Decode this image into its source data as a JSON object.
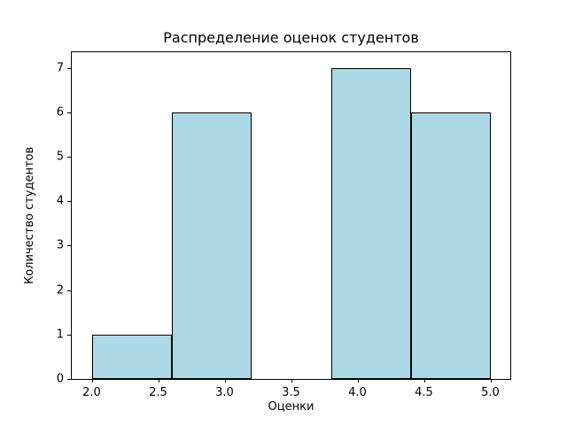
{
  "chart_data": {
    "type": "bar",
    "subtype": "histogram",
    "title": "Распределение оценок студентов",
    "xlabel": "Оценки",
    "ylabel": "Количество студентов",
    "bin_edges": [
      2.0,
      2.6,
      3.2,
      3.8,
      4.4,
      5.0
    ],
    "values": [
      1,
      6,
      0,
      7,
      6
    ],
    "xlim": [
      1.85,
      5.15
    ],
    "ylim": [
      0,
      7.35
    ],
    "xticks": [
      2.0,
      2.5,
      3.0,
      3.5,
      4.0,
      4.5,
      5.0
    ],
    "xtick_labels": [
      "2.0",
      "2.5",
      "3.0",
      "3.5",
      "4.0",
      "4.5",
      "5.0"
    ],
    "yticks": [
      0,
      1,
      2,
      3,
      4,
      5,
      6,
      7
    ],
    "ytick_labels": [
      "0",
      "1",
      "2",
      "3",
      "4",
      "5",
      "6",
      "7"
    ],
    "grid": false,
    "legend": null,
    "bar_fill": "#ADD8E6",
    "bar_edge": "#000000",
    "background": "#FFFFFF"
  }
}
